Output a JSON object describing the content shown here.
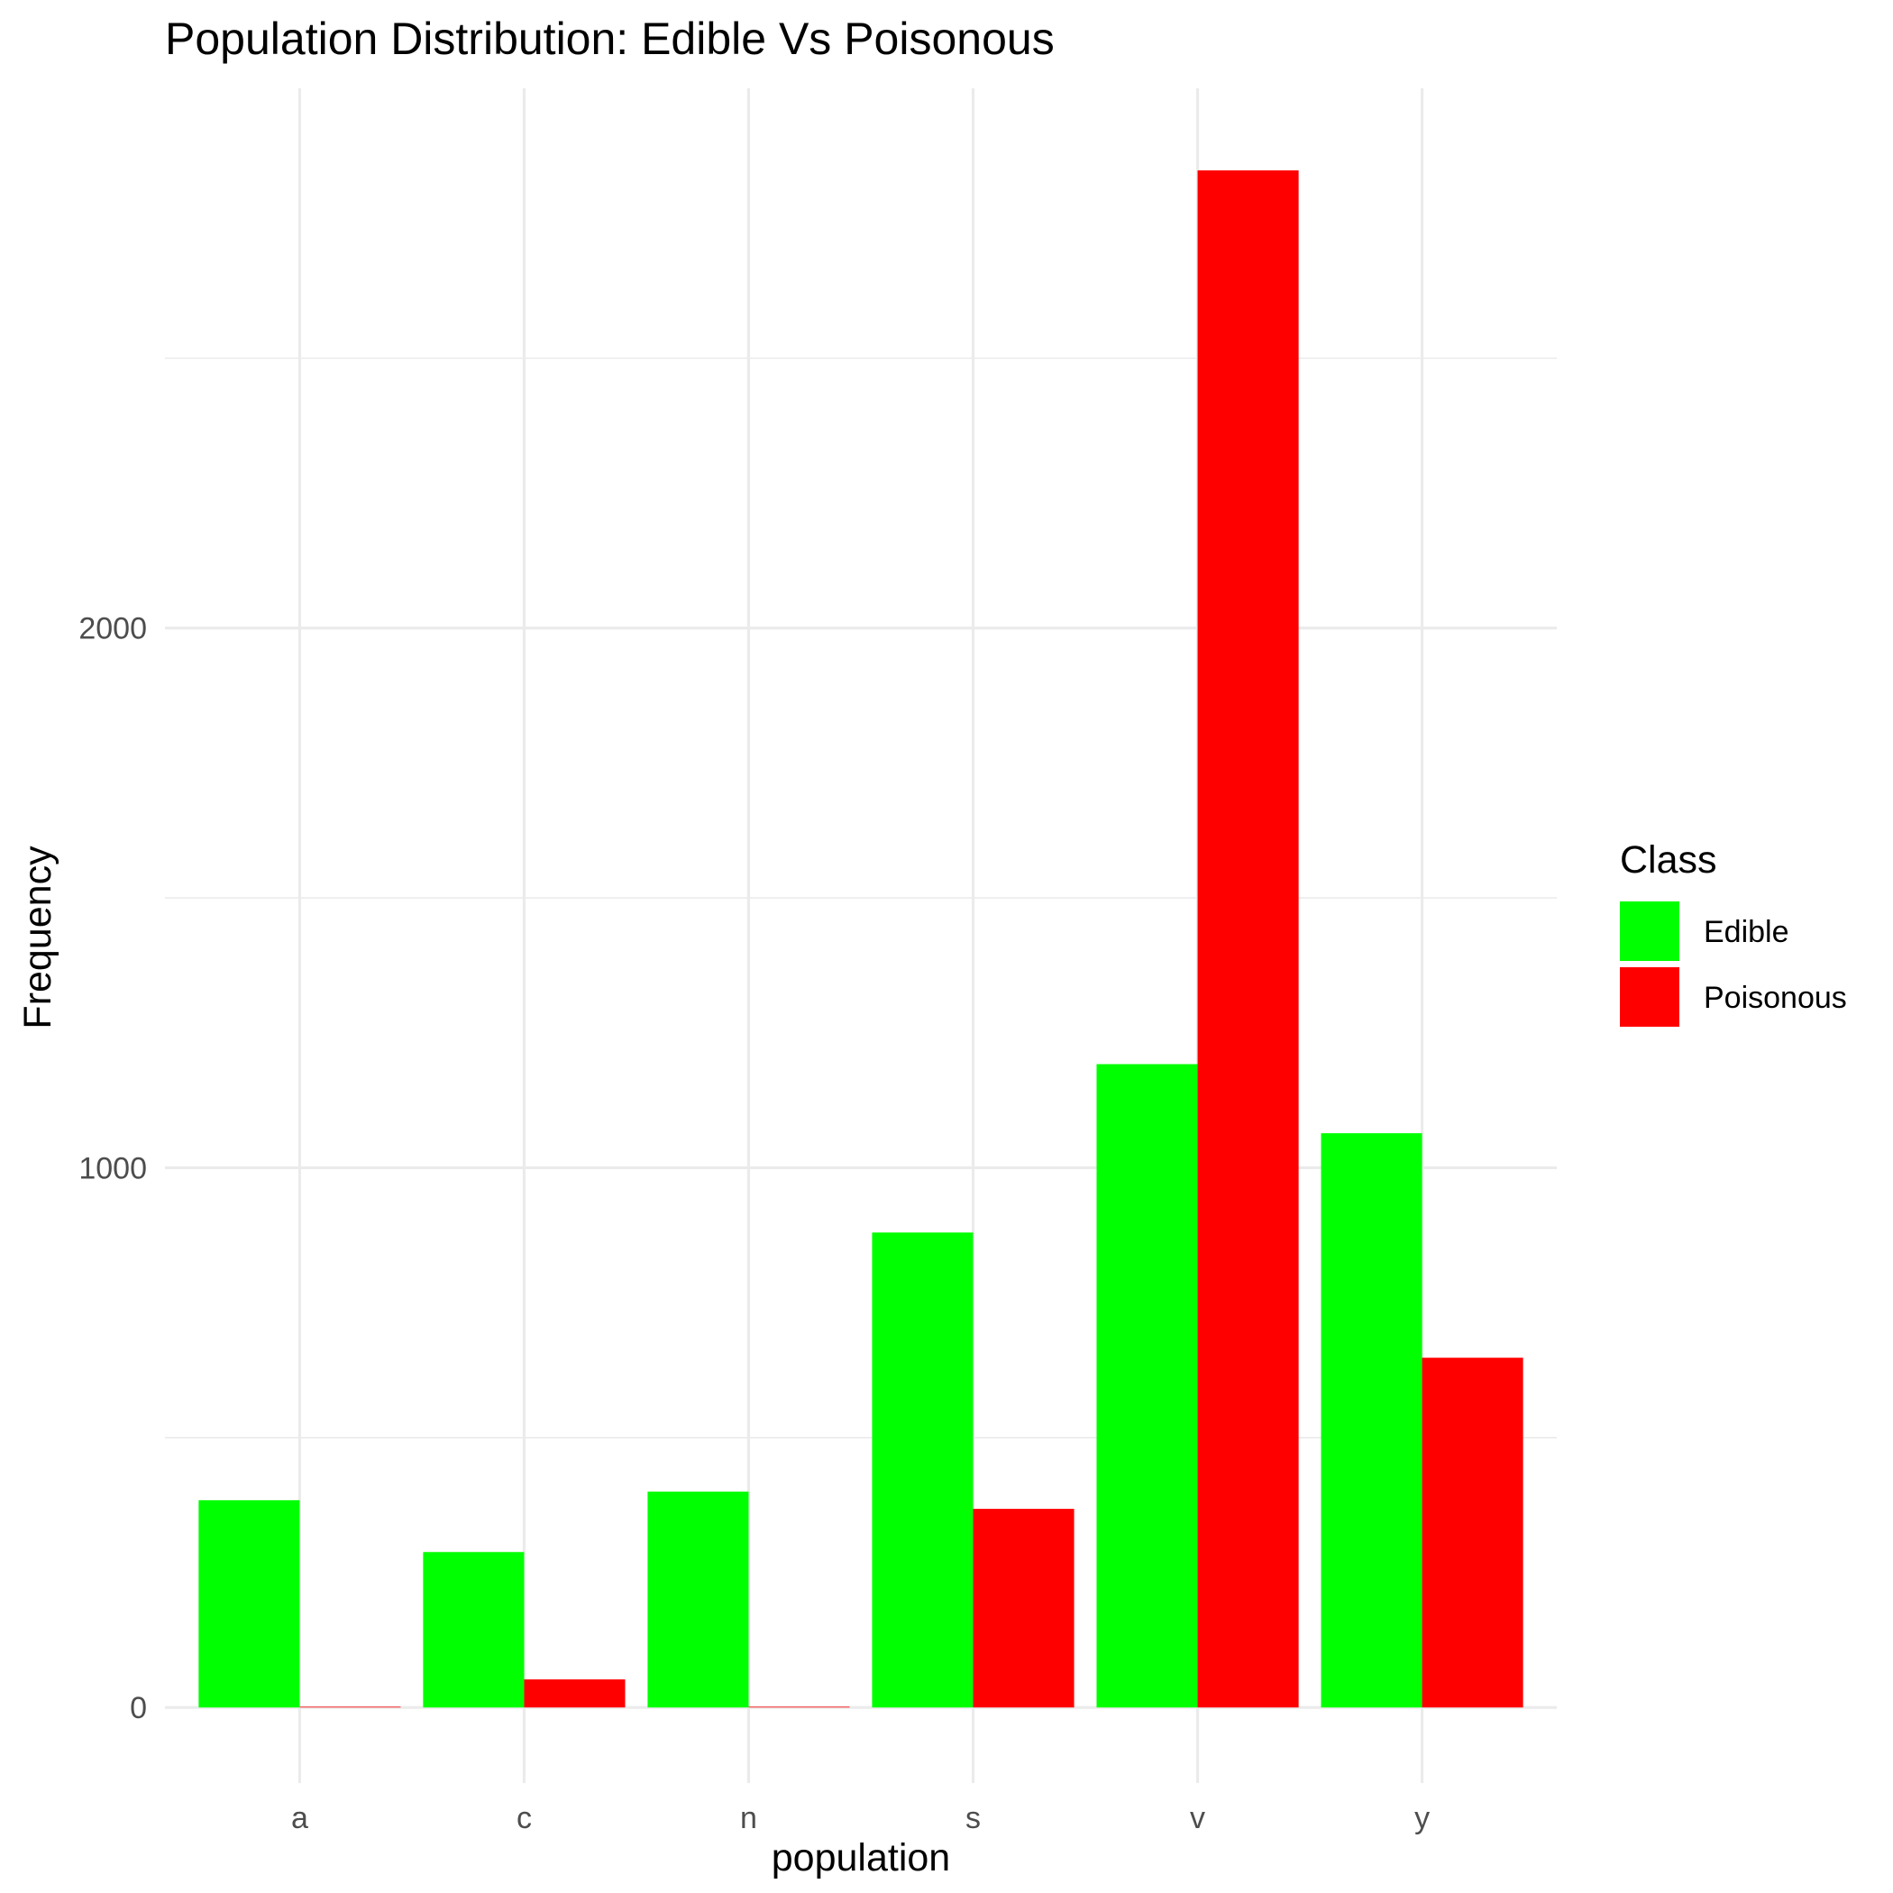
{
  "chart_data": {
    "type": "bar",
    "title": "Population Distribution: Edible Vs Poisonous",
    "xlabel": "population",
    "ylabel": "Frequency",
    "categories": [
      "a",
      "c",
      "n",
      "s",
      "v",
      "y"
    ],
    "series": [
      {
        "name": "Edible",
        "color": "#00ff00",
        "values": [
          384,
          288,
          400,
          880,
          1192,
          1064
        ]
      },
      {
        "name": "Poisonous",
        "color": "#ff0000",
        "values": [
          0,
          52,
          0,
          368,
          2848,
          648
        ]
      }
    ],
    "ylim": [
      -140,
      3000
    ],
    "yticks": [
      0,
      1000,
      2000
    ],
    "grid": true,
    "legend": {
      "title": "Class",
      "position": "right"
    }
  }
}
